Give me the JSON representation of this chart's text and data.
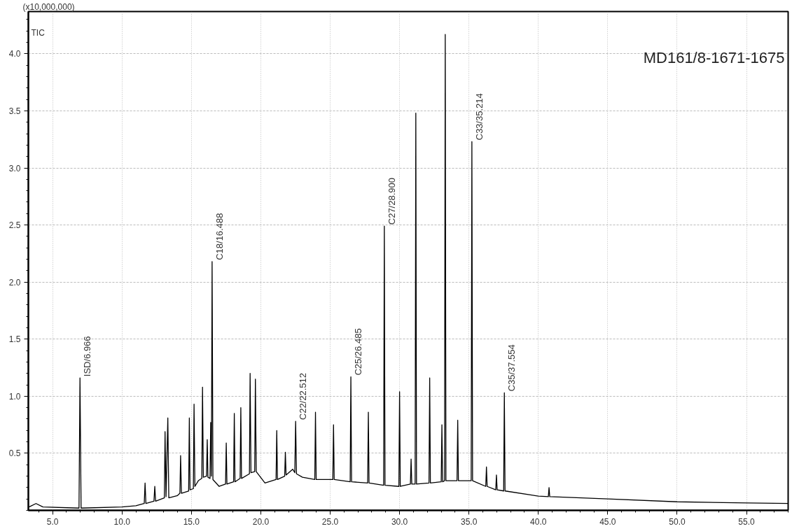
{
  "chart_data": {
    "type": "line",
    "title": "MD161/8-1671-1675",
    "ylabel": "(x10,000,000)",
    "annotations": [
      "TIC",
      {
        "text": "ISD/6.966",
        "x": 6.97,
        "y": 1.16
      },
      {
        "text": "C18/16.488",
        "x": 16.49,
        "y": 2.18
      },
      {
        "text": "C22/22.512",
        "x": 22.51,
        "y": 0.78
      },
      {
        "text": "C25/26.485",
        "x": 26.49,
        "y": 1.17
      },
      {
        "text": "C27/28.900",
        "x": 28.9,
        "y": 2.49
      },
      {
        "text": "C33/35.214",
        "x": 35.21,
        "y": 3.23
      },
      {
        "text": "C35/37.554",
        "x": 37.55,
        "y": 1.03
      }
    ],
    "xlim": [
      3.25,
      58.0
    ],
    "ylim": [
      0,
      4.37
    ],
    "xticks": [
      {
        "value": 5,
        "label": "5.0"
      },
      {
        "value": 10,
        "label": "10.0"
      },
      {
        "value": 15,
        "label": "15.0"
      },
      {
        "value": 20,
        "label": "20.0"
      },
      {
        "value": 25,
        "label": "25.0"
      },
      {
        "value": 30,
        "label": "30.0"
      },
      {
        "value": 35,
        "label": "35.0"
      },
      {
        "value": 40,
        "label": "40.0"
      },
      {
        "value": 45,
        "label": "45.0"
      },
      {
        "value": 50,
        "label": "50.0"
      },
      {
        "value": 55,
        "label": "55.0"
      }
    ],
    "yticks": [
      {
        "value": 0.5,
        "label": "0.5"
      },
      {
        "value": 1,
        "label": "1.0"
      },
      {
        "value": 1.5,
        "label": "1.5"
      },
      {
        "value": 2,
        "label": "2.0"
      },
      {
        "value": 2.5,
        "label": "2.5"
      },
      {
        "value": 3,
        "label": "3.0"
      },
      {
        "value": 3.5,
        "label": "3.5"
      },
      {
        "value": 4,
        "label": "4.0"
      }
    ],
    "grid": true,
    "marker": "none",
    "line_style": "solid",
    "series": [
      {
        "color": "#000000",
        "x": [
          3.3,
          3.8,
          4.3,
          6.9,
          6.97,
          7.05,
          10.0,
          11.0,
          11.6,
          11.66,
          11.72,
          12.3,
          12.36,
          12.42,
          13.05,
          13.1,
          13.17,
          13.3,
          13.37,
          14.0,
          14.17,
          14.22,
          14.28,
          14.8,
          14.85,
          14.9,
          15.14,
          15.19,
          15.25,
          15.5,
          15.75,
          15.8,
          15.86,
          16.09,
          16.14,
          16.19,
          16.34,
          16.39,
          16.44,
          16.49,
          16.55,
          17.0,
          17.46,
          17.51,
          17.56,
          18.04,
          18.09,
          18.14,
          18.51,
          18.56,
          18.61,
          19.18,
          19.23,
          19.29,
          19.56,
          19.61,
          19.67,
          20.3,
          21.1,
          21.15,
          21.2,
          21.72,
          21.77,
          21.82,
          22.3,
          22.45,
          22.51,
          22.57,
          23.0,
          23.89,
          23.94,
          23.99,
          25.0,
          25.19,
          25.24,
          25.29,
          26.44,
          26.49,
          26.54,
          27.7,
          27.75,
          27.8,
          28.85,
          28.9,
          28.95,
          29.95,
          30.0,
          30.05,
          30.78,
          30.83,
          30.88,
          31.12,
          31.17,
          31.22,
          32.12,
          32.17,
          32.22,
          33.0,
          33.05,
          33.1,
          33.24,
          33.29,
          33.34,
          34.14,
          34.19,
          34.24,
          35.16,
          35.21,
          35.26,
          36.21,
          36.26,
          36.31,
          36.93,
          36.98,
          37.03,
          37.5,
          37.55,
          37.6,
          40.0,
          40.72,
          40.77,
          40.82,
          45.0,
          50.0,
          55.0,
          58.0
        ],
        "values": [
          0.03,
          0.06,
          0.03,
          0.02,
          1.16,
          0.02,
          0.03,
          0.04,
          0.06,
          0.24,
          0.06,
          0.08,
          0.21,
          0.08,
          0.11,
          0.69,
          0.12,
          0.81,
          0.11,
          0.13,
          0.15,
          0.48,
          0.15,
          0.17,
          0.81,
          0.18,
          0.19,
          0.93,
          0.21,
          0.26,
          0.28,
          1.08,
          0.29,
          0.3,
          0.62,
          0.29,
          0.28,
          0.77,
          0.3,
          2.18,
          0.27,
          0.21,
          0.23,
          0.59,
          0.23,
          0.25,
          0.85,
          0.25,
          0.28,
          0.9,
          0.28,
          0.32,
          1.2,
          0.33,
          0.34,
          1.15,
          0.34,
          0.24,
          0.27,
          0.7,
          0.27,
          0.3,
          0.51,
          0.31,
          0.36,
          0.33,
          0.78,
          0.32,
          0.29,
          0.27,
          0.86,
          0.27,
          0.27,
          0.27,
          0.75,
          0.27,
          0.25,
          1.17,
          0.25,
          0.24,
          0.86,
          0.24,
          0.22,
          2.49,
          0.22,
          0.21,
          1.04,
          0.21,
          0.23,
          0.45,
          0.23,
          0.23,
          3.48,
          0.23,
          0.24,
          1.16,
          0.24,
          0.25,
          0.75,
          0.25,
          0.26,
          4.17,
          0.26,
          0.26,
          0.79,
          0.26,
          0.26,
          3.23,
          0.26,
          0.21,
          0.38,
          0.21,
          0.18,
          0.31,
          0.18,
          0.17,
          1.03,
          0.17,
          0.125,
          0.12,
          0.2,
          0.12,
          0.1,
          0.075,
          0.065,
          0.06
        ]
      }
    ]
  }
}
